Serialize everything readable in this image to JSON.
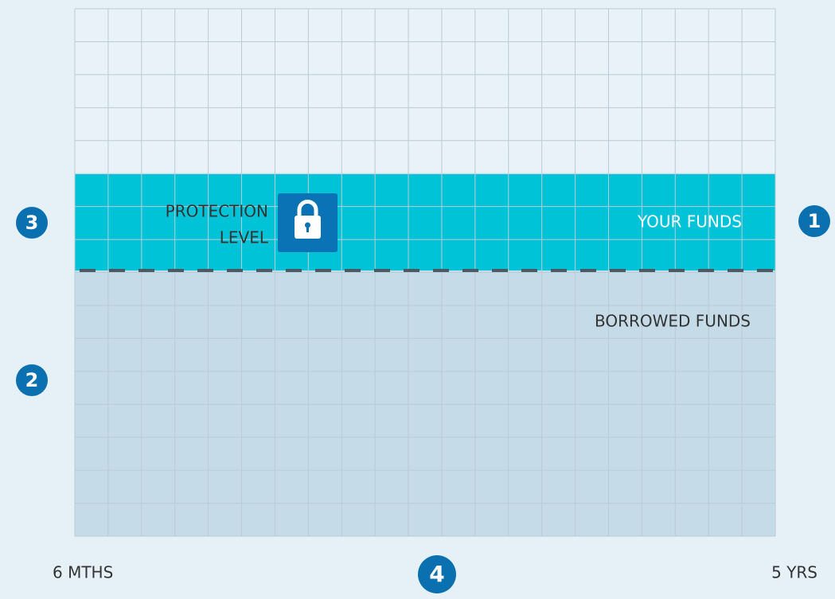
{
  "zones": {
    "upper": "YOUR FUNDS",
    "lower": "BORROWED FUNDS"
  },
  "protection": {
    "line1": "PROTECTION",
    "line2": "LEVEL"
  },
  "axis": {
    "start": "6 MTHS",
    "end": "5 YRS"
  },
  "badges": [
    "1",
    "2",
    "3",
    "4"
  ]
}
